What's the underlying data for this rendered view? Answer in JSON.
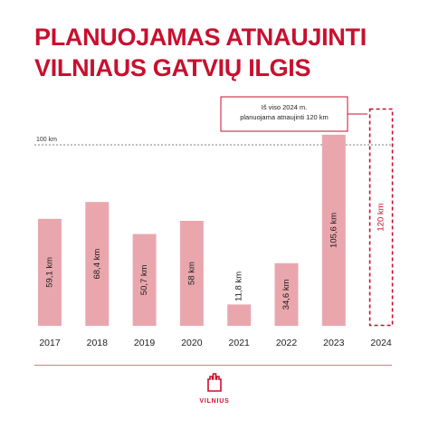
{
  "title_lines": [
    "PLANUOJAMAS ATNAUJINTI",
    "VILNIAUS GATVIŲ ILGIS"
  ],
  "colors": {
    "accent": "#c8102e",
    "bar": "#e9a7ad",
    "bar_label": "#1a1a1a",
    "reference_line": "#555555"
  },
  "chart_data": {
    "type": "bar",
    "title": "PLANUOJAMAS ATNAUJINTI VILNIAUS GATVIŲ ILGIS",
    "categories": [
      "2017",
      "2018",
      "2019",
      "2020",
      "2021",
      "2022",
      "2023",
      "2024"
    ],
    "values": [
      59.1,
      68.4,
      50.7,
      58,
      11.8,
      34.6,
      105.6,
      120
    ],
    "value_labels": [
      "59,1 km",
      "68,4 km",
      "50,7 km",
      "58 km",
      "11,8 km",
      "34,6 km",
      "105,6 km",
      "120 km"
    ],
    "planned_last_bar": true,
    "reference_line": {
      "value": 100,
      "label": "100 km"
    },
    "annotation": [
      "Iš viso 2024 m.",
      "planuojama atnaujinti 120 km"
    ],
    "ylim": [
      0,
      120
    ],
    "grid": false,
    "legend": "none"
  },
  "logo": {
    "text": "VILNIUS"
  }
}
